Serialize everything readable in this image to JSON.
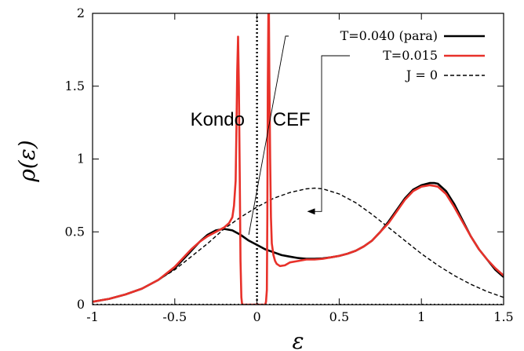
{
  "chart_data": {
    "type": "line",
    "title": "",
    "xlabel": "ε",
    "ylabel": "ρ(ε)",
    "xlim": [
      -1,
      1.5
    ],
    "ylim": [
      0,
      2
    ],
    "x_ticks": [
      {
        "value": -1,
        "label": "-1"
      },
      {
        "value": -0.5,
        "label": "-0.5"
      },
      {
        "value": 0,
        "label": "0"
      },
      {
        "value": 0.5,
        "label": "0.5"
      },
      {
        "value": 1,
        "label": "1"
      },
      {
        "value": 1.5,
        "label": "1.5"
      }
    ],
    "y_ticks": [
      {
        "value": 0,
        "label": "0"
      },
      {
        "value": 0.5,
        "label": "0.5"
      },
      {
        "value": 1,
        "label": "1"
      },
      {
        "value": 1.5,
        "label": "1.5"
      },
      {
        "value": 2,
        "label": "2"
      }
    ],
    "grid": false,
    "legend_position": "top-right",
    "series": [
      {
        "name": "T=0.040 (para)",
        "color": "#000000",
        "style": "solid",
        "x": [
          -1.0,
          -0.9,
          -0.8,
          -0.7,
          -0.6,
          -0.5,
          -0.45,
          -0.4,
          -0.35,
          -0.3,
          -0.25,
          -0.2,
          -0.15,
          -0.1,
          -0.05,
          0.0,
          0.05,
          0.1,
          0.15,
          0.2,
          0.25,
          0.3,
          0.35,
          0.4,
          0.45,
          0.5,
          0.55,
          0.6,
          0.65,
          0.7,
          0.75,
          0.8,
          0.85,
          0.9,
          0.95,
          1.0,
          1.05,
          1.08,
          1.1,
          1.15,
          1.2,
          1.25,
          1.3,
          1.35,
          1.4,
          1.45,
          1.5
        ],
        "y": [
          0.02,
          0.04,
          0.07,
          0.11,
          0.17,
          0.25,
          0.31,
          0.37,
          0.43,
          0.48,
          0.51,
          0.52,
          0.51,
          0.48,
          0.44,
          0.41,
          0.38,
          0.36,
          0.34,
          0.33,
          0.32,
          0.315,
          0.315,
          0.318,
          0.325,
          0.335,
          0.35,
          0.37,
          0.4,
          0.44,
          0.5,
          0.57,
          0.65,
          0.73,
          0.79,
          0.82,
          0.835,
          0.835,
          0.83,
          0.78,
          0.69,
          0.58,
          0.47,
          0.38,
          0.31,
          0.24,
          0.19
        ]
      },
      {
        "name": "T=0.015",
        "color": "#e8312a",
        "style": "solid",
        "x": [
          -1.0,
          -0.9,
          -0.8,
          -0.7,
          -0.6,
          -0.5,
          -0.45,
          -0.4,
          -0.35,
          -0.3,
          -0.25,
          -0.2,
          -0.17,
          -0.15,
          -0.14,
          -0.13,
          -0.125,
          -0.12,
          -0.115,
          -0.11,
          -0.105,
          -0.1,
          -0.095,
          -0.09,
          0.05,
          0.055,
          0.06,
          0.063,
          0.066,
          0.07,
          0.072,
          0.075,
          0.08,
          0.085,
          0.09,
          0.1,
          0.11,
          0.12,
          0.14,
          0.17,
          0.2,
          0.25,
          0.3,
          0.35,
          0.4,
          0.45,
          0.5,
          0.55,
          0.6,
          0.65,
          0.7,
          0.75,
          0.8,
          0.85,
          0.9,
          0.95,
          1.0,
          1.05,
          1.08,
          1.1,
          1.15,
          1.2,
          1.25,
          1.3,
          1.35,
          1.4,
          1.45,
          1.5
        ],
        "y": [
          0.02,
          0.04,
          0.07,
          0.11,
          0.17,
          0.26,
          0.32,
          0.38,
          0.43,
          0.47,
          0.5,
          0.53,
          0.56,
          0.6,
          0.68,
          0.85,
          1.2,
          1.6,
          1.84,
          1.5,
          0.9,
          0.3,
          0.05,
          0.0,
          0.0,
          0.02,
          0.1,
          0.6,
          1.5,
          2.1,
          2.1,
          1.6,
          1.0,
          0.6,
          0.42,
          0.34,
          0.3,
          0.28,
          0.265,
          0.27,
          0.29,
          0.3,
          0.31,
          0.31,
          0.315,
          0.325,
          0.335,
          0.35,
          0.37,
          0.4,
          0.44,
          0.5,
          0.56,
          0.64,
          0.72,
          0.78,
          0.81,
          0.82,
          0.815,
          0.81,
          0.76,
          0.67,
          0.57,
          0.47,
          0.38,
          0.31,
          0.25,
          0.2
        ]
      },
      {
        "name": "J = 0",
        "color": "#000000",
        "style": "dashed",
        "x": [
          -1.0,
          -0.9,
          -0.8,
          -0.7,
          -0.6,
          -0.5,
          -0.4,
          -0.3,
          -0.2,
          -0.1,
          0.0,
          0.1,
          0.2,
          0.3,
          0.35,
          0.4,
          0.5,
          0.6,
          0.7,
          0.8,
          0.9,
          1.0,
          1.1,
          1.2,
          1.3,
          1.4,
          1.5
        ],
        "y": [
          0.02,
          0.04,
          0.07,
          0.11,
          0.17,
          0.24,
          0.33,
          0.42,
          0.52,
          0.6,
          0.67,
          0.73,
          0.77,
          0.795,
          0.8,
          0.795,
          0.76,
          0.7,
          0.62,
          0.53,
          0.44,
          0.35,
          0.27,
          0.2,
          0.14,
          0.09,
          0.05
        ]
      },
      {
        "name": "",
        "color": "#000000",
        "style": "dotted-vertical",
        "x": [
          0.0,
          0.0
        ],
        "y": [
          0,
          2
        ]
      }
    ],
    "annotations": [
      {
        "text": "Kondo",
        "x": -0.24,
        "y": 1.23
      },
      {
        "text": "CEF",
        "x": 0.21,
        "y": 1.23
      }
    ],
    "legend_arrows": [
      {
        "series": "T=0.040 (para)",
        "to_x": -0.05,
        "to_y": 0.48
      },
      {
        "series": "T=0.015",
        "to_x": 0.31,
        "to_y": 0.64
      }
    ]
  }
}
